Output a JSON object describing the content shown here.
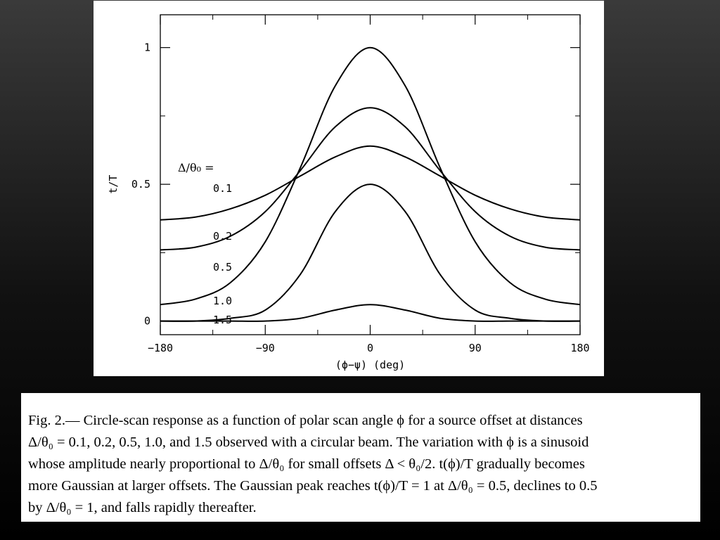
{
  "chart_data": {
    "type": "line",
    "xlabel": "(ϕ−ψ) (deg)",
    "ylabel": "t/T",
    "xlim": [
      -180,
      180
    ],
    "ylim": [
      -0.05,
      1.12
    ],
    "x_ticks": [
      "−180",
      "−90",
      "0",
      "90",
      "180"
    ],
    "x_tick_values": [
      -180,
      -90,
      0,
      90,
      180
    ],
    "y_ticks": [
      "0",
      "0.5",
      "1"
    ],
    "y_tick_values": [
      0,
      0.5,
      1
    ],
    "legend_title": "Δ/θ₀ =",
    "legend_placement": "inside-left",
    "series": [
      {
        "name": "0.1",
        "x": [
          -180,
          -150,
          -120,
          -90,
          -60,
          -30,
          0,
          30,
          60,
          90,
          120,
          150,
          180
        ],
        "values": [
          0.37,
          0.38,
          0.41,
          0.46,
          0.53,
          0.6,
          0.64,
          0.6,
          0.53,
          0.46,
          0.41,
          0.38,
          0.37
        ]
      },
      {
        "name": "0.2",
        "x": [
          -180,
          -150,
          -120,
          -90,
          -60,
          -30,
          0,
          30,
          60,
          90,
          120,
          150,
          180
        ],
        "values": [
          0.26,
          0.27,
          0.31,
          0.4,
          0.55,
          0.71,
          0.78,
          0.71,
          0.55,
          0.4,
          0.31,
          0.27,
          0.26
        ]
      },
      {
        "name": "0.5",
        "x": [
          -180,
          -150,
          -120,
          -90,
          -60,
          -30,
          0,
          30,
          60,
          90,
          120,
          150,
          180
        ],
        "values": [
          0.06,
          0.08,
          0.14,
          0.29,
          0.56,
          0.86,
          1.0,
          0.86,
          0.56,
          0.29,
          0.14,
          0.08,
          0.06
        ]
      },
      {
        "name": "1.0",
        "x": [
          -180,
          -150,
          -120,
          -90,
          -60,
          -30,
          0,
          30,
          60,
          90,
          120,
          150,
          180
        ],
        "values": [
          0.0,
          0.0,
          0.01,
          0.04,
          0.17,
          0.4,
          0.5,
          0.4,
          0.17,
          0.04,
          0.01,
          0.0,
          0.0
        ]
      },
      {
        "name": "1.5",
        "x": [
          -180,
          -150,
          -120,
          -90,
          -60,
          -30,
          0,
          30,
          60,
          90,
          120,
          150,
          180
        ],
        "values": [
          0.0,
          0.0,
          0.0,
          0.0,
          0.01,
          0.04,
          0.06,
          0.04,
          0.01,
          0.0,
          0.0,
          0.0,
          0.0
        ]
      }
    ]
  },
  "caption": {
    "lines": [
      "Fig.  2.— Circle-scan response as a function of polar scan angle ϕ for a source offset at distances",
      "Δ/θ₀ = 0.1, 0.2, 0.5, 1.0, and 1.5 observed with a circular beam. The variation with ϕ is a sinusoid",
      "whose amplitude nearly proportional to Δ/θ₀ for small offsets Δ < θ₀/2. t(ϕ)/T gradually becomes",
      "more Gaussian at larger offsets. The Gaussian peak reaches t(ϕ)/T = 1 at Δ/θ₀ = 0.5, declines to 0.5",
      "by Δ/θ₀ = 1, and falls rapidly thereafter."
    ]
  }
}
